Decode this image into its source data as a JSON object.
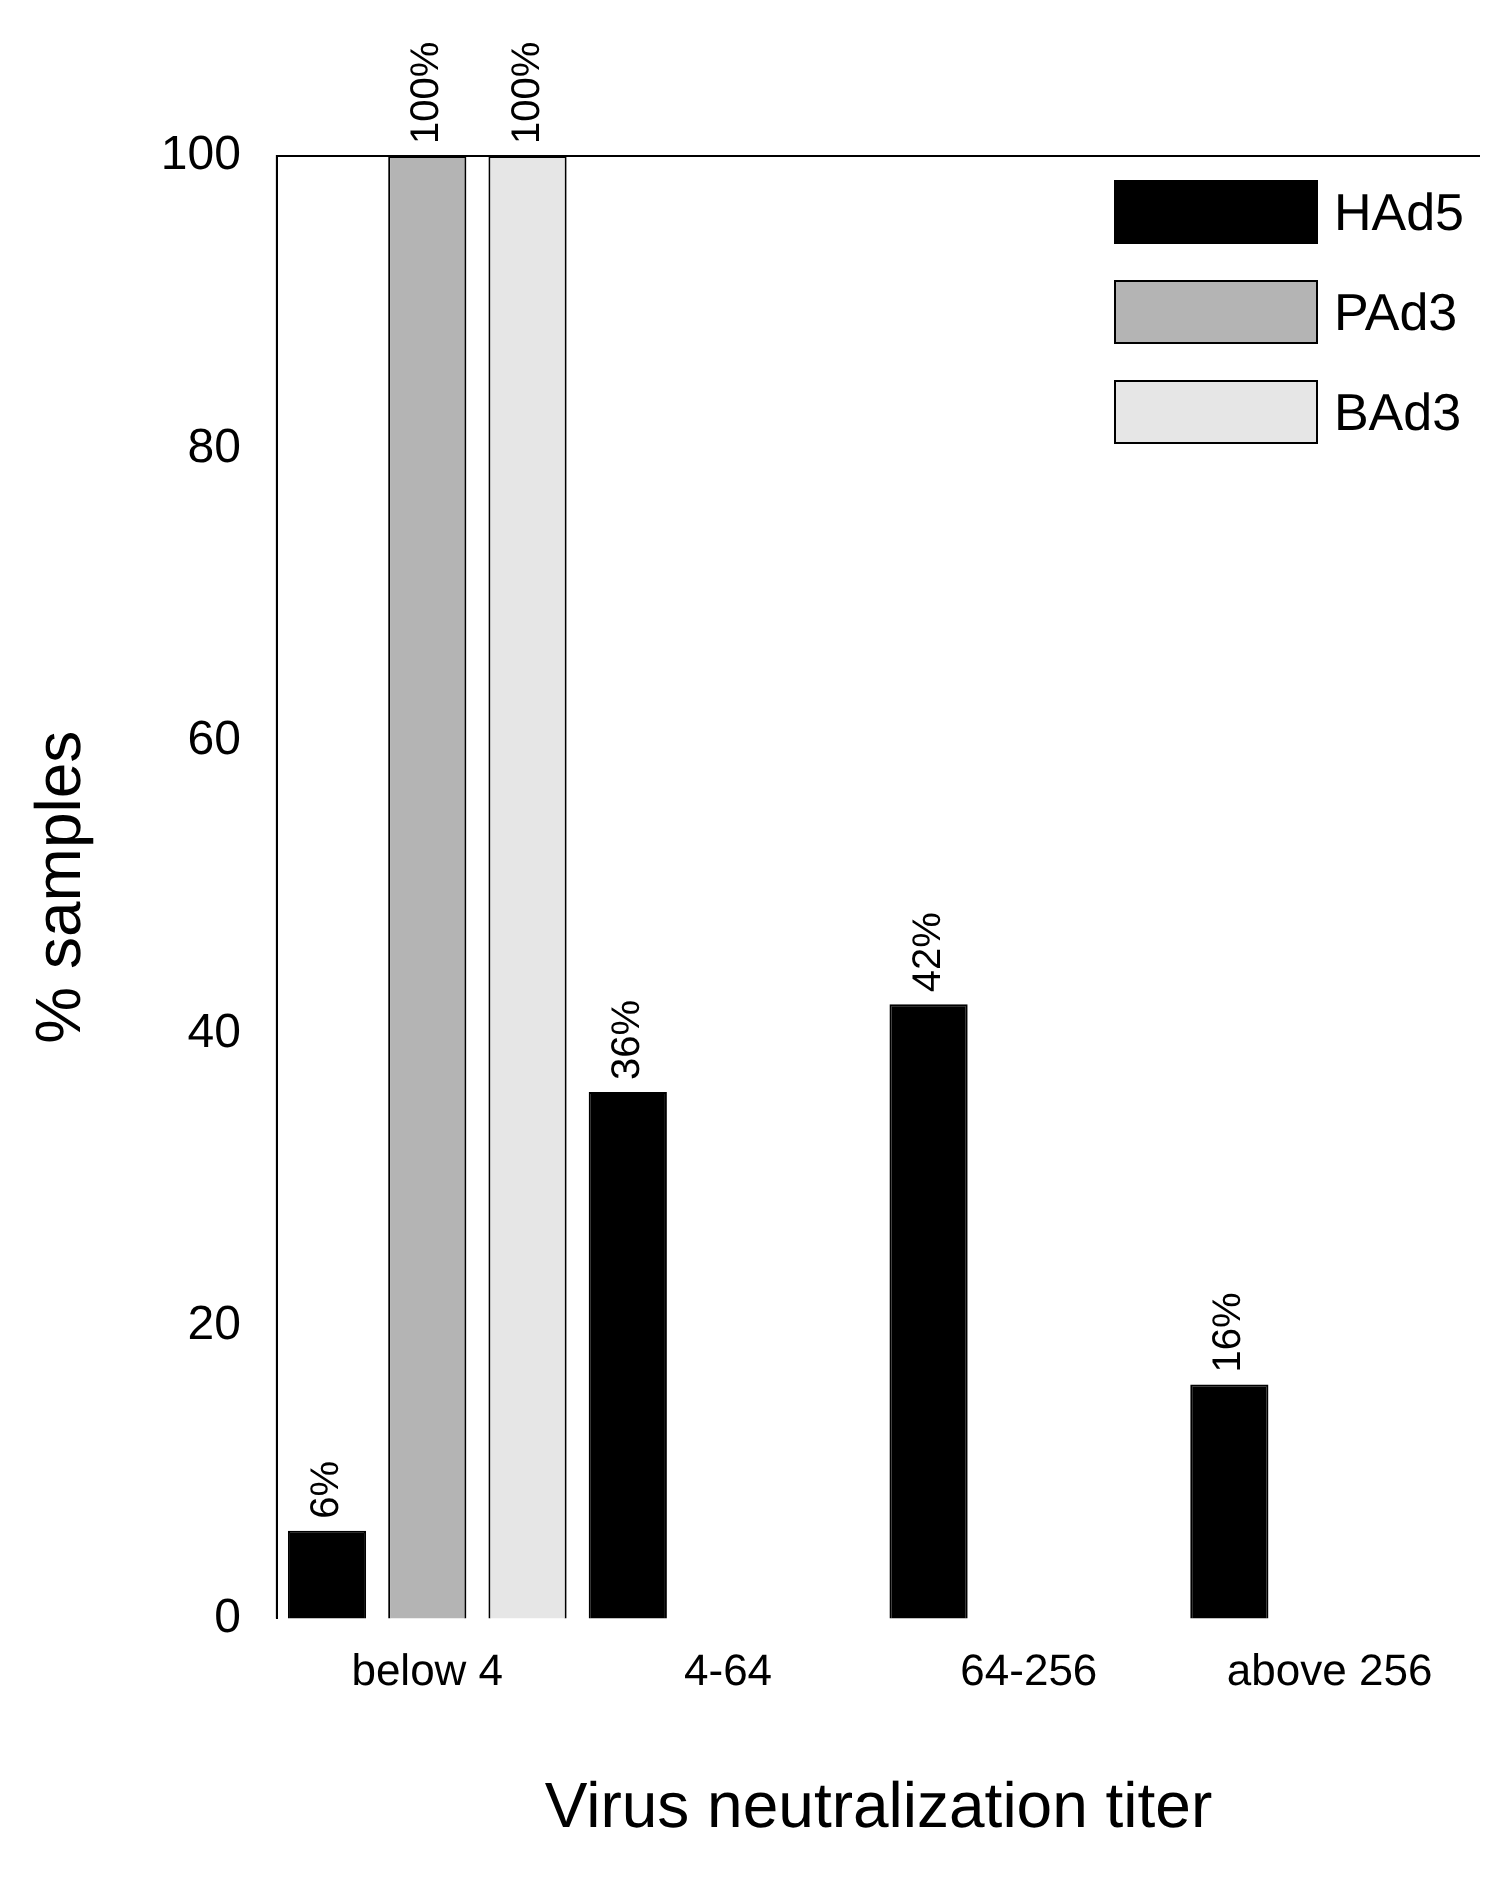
{
  "chart_data": {
    "type": "bar",
    "xlabel": "Virus neutralization titer",
    "ylabel": "% samples",
    "categories": [
      "below 4",
      "4-64",
      "64-256",
      "above 256"
    ],
    "series": [
      {
        "name": "HAd5",
        "color": "#000000",
        "values": [
          6,
          36,
          42,
          16
        ],
        "value_labels": [
          "6%",
          "36%",
          "42%",
          "16%"
        ]
      },
      {
        "name": "PAd3",
        "color": "#b4b4b4",
        "values": [
          100,
          null,
          null,
          null
        ],
        "value_labels": [
          "100%",
          null,
          null,
          null
        ]
      },
      {
        "name": "BAd3",
        "color": "#e6e6e6",
        "values": [
          100,
          null,
          null,
          null
        ],
        "value_labels": [
          "100%",
          null,
          null,
          null
        ]
      }
    ],
    "ylim": [
      0,
      100
    ],
    "yticks": [
      0,
      20,
      40,
      60,
      80,
      100
    ],
    "grid": false,
    "legend": "top right"
  }
}
